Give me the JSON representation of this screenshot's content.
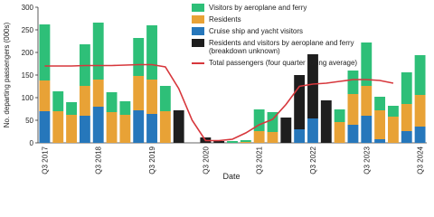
{
  "chart_data": {
    "type": "stacked-bar-line",
    "x_label": "Date",
    "y_label": "No. departing passengers (000s)",
    "categories": [
      "Q3 2017",
      null,
      null,
      null,
      "Q3 2018",
      null,
      null,
      null,
      "Q3 2019",
      null,
      null,
      null,
      "Q3 2020",
      null,
      null,
      null,
      "Q3 2021",
      null,
      null,
      null,
      "Q3 2022",
      null,
      null,
      null,
      "Q3 2023",
      null,
      null,
      null,
      "Q3 2024"
    ],
    "series": [
      {
        "name": "Cruise ship and yacht visitors",
        "color": "#2677bb",
        "values": [
          70,
          null,
          null,
          60,
          80,
          null,
          null,
          72,
          64,
          null,
          null,
          null,
          null,
          null,
          null,
          null,
          null,
          null,
          null,
          30,
          54,
          null,
          null,
          40,
          60,
          8,
          null,
          26,
          36
        ]
      },
      {
        "name": "Residents",
        "color": "#e8a236",
        "values": [
          68,
          70,
          62,
          66,
          60,
          68,
          62,
          76,
          76,
          70,
          null,
          null,
          null,
          null,
          null,
          2,
          26,
          24,
          null,
          null,
          null,
          null,
          46,
          68,
          66,
          64,
          58,
          60,
          70
        ]
      },
      {
        "name": "Visitors by aeroplane and ferry",
        "color": "#2ebf78",
        "values": [
          124,
          44,
          28,
          92,
          126,
          44,
          30,
          84,
          120,
          56,
          null,
          null,
          null,
          null,
          4,
          4,
          48,
          44,
          null,
          null,
          null,
          null,
          28,
          52,
          96,
          30,
          24,
          70,
          88
        ]
      },
      {
        "name": "Residents and visitors by aeroplane and ferry (breakdown unknown)",
        "color": "#1e1e1e",
        "values": [
          null,
          null,
          null,
          null,
          null,
          null,
          null,
          null,
          null,
          null,
          72,
          null,
          12,
          4,
          null,
          null,
          null,
          null,
          56,
          120,
          142,
          94,
          null,
          null,
          null,
          null,
          null,
          null,
          null
        ]
      }
    ],
    "line": {
      "name": "Total passengers (four quarter rolling average)",
      "color": "#d7373c",
      "values": [
        170,
        170,
        170,
        171,
        171,
        171,
        172,
        173,
        173,
        168,
        120,
        50,
        5,
        5,
        8,
        22,
        40,
        52,
        85,
        125,
        130,
        132,
        136,
        140,
        140,
        138,
        132,
        null,
        null
      ]
    },
    "ylim": [
      0,
      300
    ],
    "yticks": [
      0,
      50,
      100,
      150,
      200,
      250,
      300
    ],
    "grid": false
  }
}
